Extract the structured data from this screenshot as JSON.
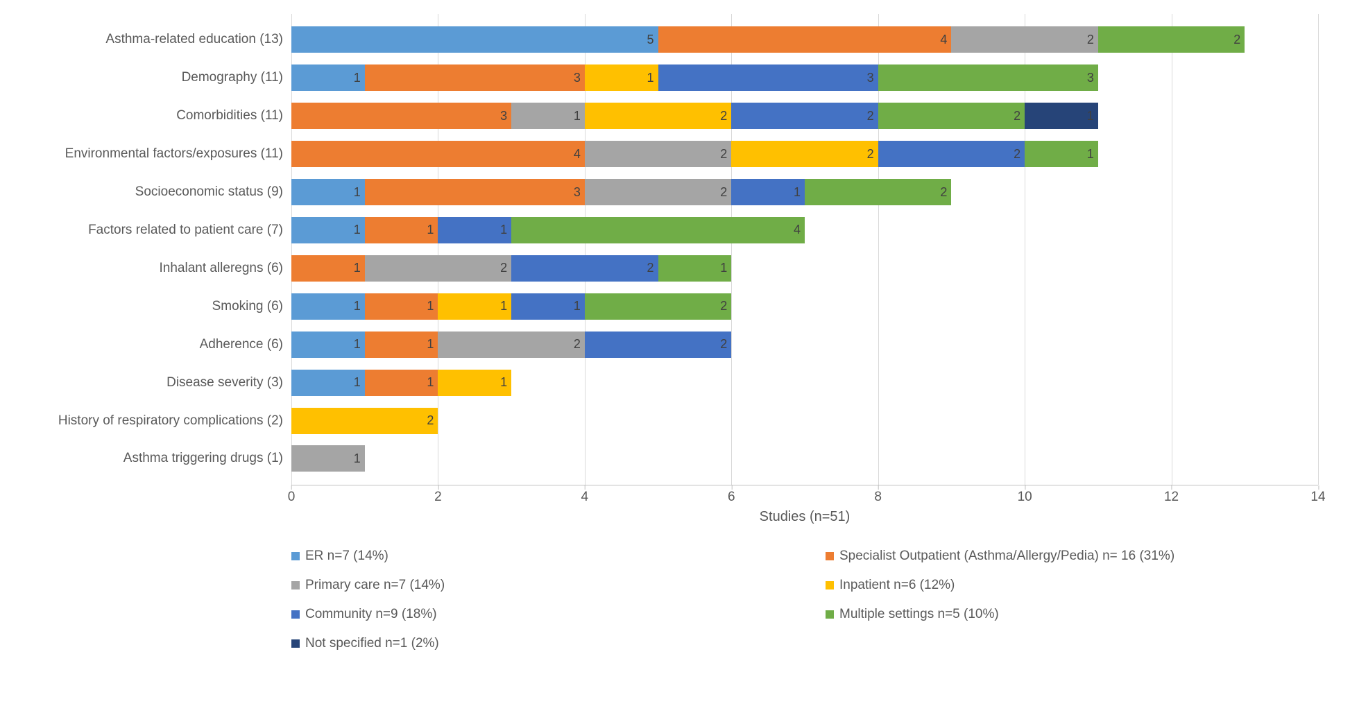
{
  "chart": {
    "type": "stacked-horizontal-bar",
    "background_color": "#ffffff",
    "grid_color": "#d9d9d9",
    "axis_color": "#bfbfbf",
    "text_color": "#595959",
    "label_fontsize": 19,
    "value_fontsize": 18,
    "xaxis": {
      "label": "Studies (n=51)",
      "min": 0,
      "max": 14,
      "tick_step": 2,
      "ticks": [
        0,
        2,
        4,
        6,
        8,
        10,
        12,
        14
      ]
    },
    "series": [
      {
        "key": "er",
        "label": "ER n=7 (14%)",
        "color": "#5b9bd5"
      },
      {
        "key": "specialist",
        "label": "Specialist Outpatient (Asthma/Allergy/Pedia) n= 16 (31%)",
        "color": "#ed7d31"
      },
      {
        "key": "primary",
        "label": "Primary care n=7 (14%)",
        "color": "#a5a5a5"
      },
      {
        "key": "inpatient",
        "label": "Inpatient n=6 (12%)",
        "color": "#ffc000"
      },
      {
        "key": "community",
        "label": "Community n=9 (18%)",
        "color": "#4472c4"
      },
      {
        "key": "multiple",
        "label": "Multiple settings n=5 (10%)",
        "color": "#70ad47"
      },
      {
        "key": "notspecified",
        "label": "Not specified n=1 (2%)",
        "color": "#264478"
      }
    ],
    "categories": [
      {
        "label": "Asthma-related education (13)",
        "values": {
          "er": 5,
          "specialist": 4,
          "primary": 2,
          "inpatient": 0,
          "community": 0,
          "multiple": 2,
          "notspecified": 0
        }
      },
      {
        "label": "Demography (11)",
        "values": {
          "er": 1,
          "specialist": 3,
          "primary": 0,
          "inpatient": 1,
          "community": 3,
          "multiple": 3,
          "notspecified": 0
        }
      },
      {
        "label": "Comorbidities (11)",
        "values": {
          "er": 0,
          "specialist": 3,
          "primary": 1,
          "inpatient": 2,
          "community": 2,
          "multiple": 2,
          "notspecified": 1
        }
      },
      {
        "label": "Environmental factors/exposures (11)",
        "values": {
          "er": 0,
          "specialist": 4,
          "primary": 2,
          "inpatient": 2,
          "community": 2,
          "multiple": 1,
          "notspecified": 0
        }
      },
      {
        "label": "Socioeconomic status (9)",
        "values": {
          "er": 1,
          "specialist": 3,
          "primary": 2,
          "inpatient": 0,
          "community": 1,
          "multiple": 2,
          "notspecified": 0
        }
      },
      {
        "label": "Factors related to patient care (7)",
        "values": {
          "er": 1,
          "specialist": 1,
          "primary": 0,
          "inpatient": 0,
          "community": 1,
          "multiple": 4,
          "notspecified": 0
        }
      },
      {
        "label": "Inhalant alleregns (6)",
        "values": {
          "er": 0,
          "specialist": 1,
          "primary": 2,
          "inpatient": 0,
          "community": 2,
          "multiple": 1,
          "notspecified": 0
        }
      },
      {
        "label": "Smoking (6)",
        "values": {
          "er": 1,
          "specialist": 1,
          "primary": 0,
          "inpatient": 1,
          "community": 1,
          "multiple": 2,
          "notspecified": 0
        }
      },
      {
        "label": "Adherence (6)",
        "values": {
          "er": 1,
          "specialist": 1,
          "primary": 2,
          "inpatient": 0,
          "community": 2,
          "multiple": 0,
          "notspecified": 0
        }
      },
      {
        "label": "Disease severity (3)",
        "values": {
          "er": 1,
          "specialist": 1,
          "primary": 0,
          "inpatient": 1,
          "community": 0,
          "multiple": 0,
          "notspecified": 0
        }
      },
      {
        "label": "History of respiratory complications (2)",
        "values": {
          "er": 0,
          "specialist": 0,
          "primary": 0,
          "inpatient": 2,
          "community": 0,
          "multiple": 0,
          "notspecified": 0
        }
      },
      {
        "label": "Asthma triggering drugs (1)",
        "values": {
          "er": 0,
          "specialist": 0,
          "primary": 1,
          "inpatient": 0,
          "community": 0,
          "multiple": 0,
          "notspecified": 0
        }
      }
    ]
  }
}
